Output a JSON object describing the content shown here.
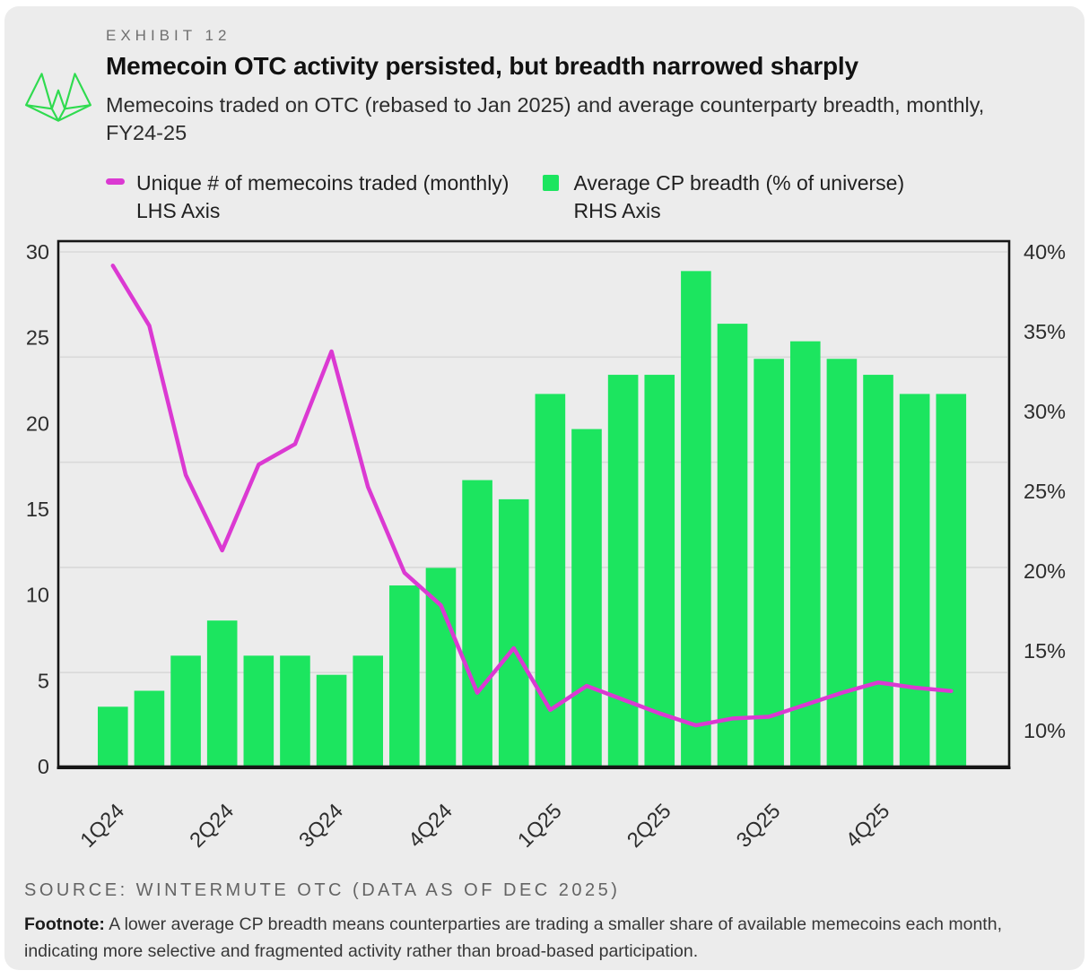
{
  "exhibit": {
    "label": "EXHIBIT 12",
    "title": "Memecoin OTC activity persisted, but breadth narrowed sharply",
    "subtitle": "Memecoins traded on OTC (rebased to Jan 2025) and average counterparty breadth, monthly,  FY24-25"
  },
  "legend": [
    {
      "label": "Unique # of memecoins traded (monthly)",
      "axis": "LHS Axis",
      "marker": "line",
      "color": "#DB39D2"
    },
    {
      "label": "Average CP breadth (% of universe)",
      "axis": "RHS Axis",
      "marker": "square",
      "color": "#1CE55F"
    }
  ],
  "source": "SOURCE: WINTERMUTE OTC (DATA AS OF DEC 2025)",
  "footnote": {
    "bold": "Footnote:",
    "text": " A lower average CP breadth means counterparties are trading a smaller share of available memecoins each month, indicating more selective and fragmented activity rather than broad-based participation."
  },
  "colors": {
    "bar_green": "#1CE55F",
    "line_magenta": "#DB39D2",
    "axis_black": "#161616",
    "grid_gray": "#d9d9d9",
    "tick_text": "#2d2d2d",
    "background": "#ececec",
    "logo_green": "#2fdb4f"
  },
  "chart_data": {
    "type": "combo_bar_line",
    "n_points": 24,
    "x_tick_labels": [
      {
        "index": 0,
        "label": "1Q24"
      },
      {
        "index": 3,
        "label": "2Q24"
      },
      {
        "index": 6,
        "label": "3Q24"
      },
      {
        "index": 9,
        "label": "4Q24"
      },
      {
        "index": 12,
        "label": "1Q25"
      },
      {
        "index": 15,
        "label": "2Q25"
      },
      {
        "index": 18,
        "label": "3Q25"
      },
      {
        "index": 21,
        "label": "4Q25"
      }
    ],
    "series": [
      {
        "name": "Unique # of memecoins traded (monthly)",
        "type": "line",
        "axis": "LHS",
        "color": "#DB39D2",
        "values": [
          29.2,
          25.7,
          17.0,
          12.6,
          17.6,
          18.8,
          24.2,
          16.3,
          11.3,
          9.4,
          4.3,
          6.9,
          3.3,
          4.7,
          3.9,
          3.1,
          2.4,
          2.8,
          2.9,
          3.6,
          4.3,
          4.9,
          4.6,
          4.4
        ]
      },
      {
        "name": "Average CP breadth (% of universe)",
        "type": "bar",
        "axis": "RHS",
        "color": "#1CE55F",
        "values": [
          11.5,
          12.5,
          14.7,
          16.9,
          14.7,
          14.7,
          13.5,
          14.7,
          19.1,
          20.2,
          25.7,
          24.5,
          31.1,
          28.9,
          32.3,
          32.3,
          38.8,
          35.5,
          33.3,
          34.4,
          33.3,
          32.3,
          31.1,
          31.1
        ]
      }
    ],
    "lhs_axis": {
      "title": "LHS Axis",
      "ticks": [
        30,
        25,
        20,
        15,
        10,
        5,
        0
      ],
      "range": [
        0,
        30
      ]
    },
    "rhs_axis": {
      "title": "RHS Axis",
      "ticks": [
        "40%",
        "35%",
        "30%",
        "25%",
        "20%",
        "15%",
        "10%"
      ],
      "top_value": 40,
      "tick_step": 5
    },
    "grid": "horizontal"
  }
}
